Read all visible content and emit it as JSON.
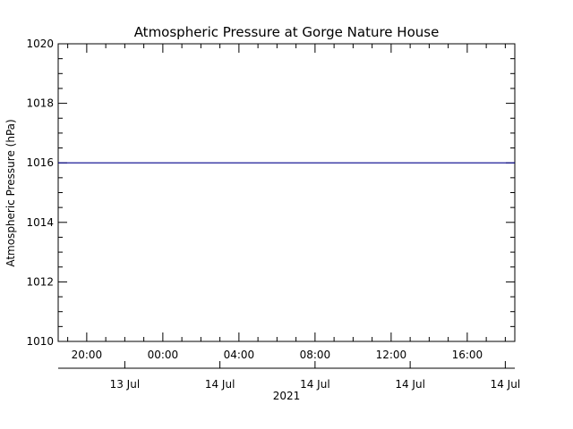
{
  "chart_data": {
    "type": "line",
    "title": "Atmospheric Pressure at Gorge Nature House",
    "xlabel": "2021",
    "ylabel": "Atmospheric Pressure (hPa)",
    "ylim": [
      1010,
      1020
    ],
    "y_ticks": [
      1010,
      1012,
      1014,
      1016,
      1018,
      1020
    ],
    "x_range_hours": [
      -5.5,
      18.5
    ],
    "x_ticks": [
      {
        "hour": -4,
        "label": "20:00"
      },
      {
        "hour": 0,
        "label": "00:00"
      },
      {
        "hour": 4,
        "label": "04:00"
      },
      {
        "hour": 8,
        "label": "08:00"
      },
      {
        "hour": 12,
        "label": "12:00"
      },
      {
        "hour": 16,
        "label": "16:00"
      }
    ],
    "date_ticks": [
      {
        "hour": -2,
        "label": "13 Jul"
      },
      {
        "hour": 3,
        "label": "14 Jul"
      },
      {
        "hour": 8,
        "label": "14 Jul"
      },
      {
        "hour": 13,
        "label": "14 Jul"
      },
      {
        "hour": 18,
        "label": "14 Jul"
      }
    ],
    "series": [
      {
        "color": "#00008b",
        "points": [
          [
            -5.5,
            1016.0
          ],
          [
            18.5,
            1016.0
          ]
        ]
      }
    ],
    "grid": false
  }
}
